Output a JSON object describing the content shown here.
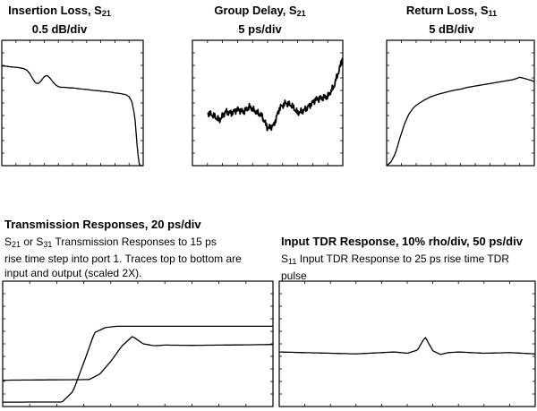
{
  "panels": {
    "insertion": {
      "title_main": "Insertion Loss, S",
      "title_sub": "21",
      "scale": "0.5 dB/div"
    },
    "group_delay": {
      "title_main": "Group Delay, S",
      "title_sub": "21",
      "scale": "5 ps/div"
    },
    "return_loss": {
      "title_main": "Return Loss, S",
      "title_sub": "11",
      "scale": "5 dB/div"
    },
    "transmission": {
      "title": "Transmission Responses, 20 ps/div",
      "desc_a": "S",
      "desc_a_sub": "21",
      "desc_b": " or S",
      "desc_b_sub": "31",
      "desc_line1": " Transmission Responses to 15 ps",
      "desc_line2": "rise time step into port 1. Traces top to bottom are",
      "desc_line3": "input and output (scaled 2X)."
    },
    "tdr": {
      "title": "Input TDR Response, 10% rho/div, 50 ps/div",
      "desc_a": "S",
      "desc_a_sub": "11",
      "desc_line1": " Input TDR Response to 25 ps rise time TDR",
      "desc_line2": "pulse"
    }
  },
  "chart_data": [
    {
      "type": "line",
      "name": "insertion-loss",
      "y_unit": "0.5 dB/div",
      "x": [
        0,
        0.2,
        0.4,
        0.6,
        0.8,
        1.0,
        1.2,
        1.4,
        1.6,
        1.8,
        2.0,
        2.2,
        2.4,
        2.6,
        2.8,
        3.0,
        3.2,
        3.4,
        3.6,
        3.8,
        4.0,
        4.2,
        4.4,
        4.6,
        4.8,
        5.0,
        5.2,
        5.4,
        5.6,
        5.8,
        6.0,
        6.2,
        6.4,
        6.6,
        6.8,
        7.0,
        7.2,
        7.4,
        7.6,
        7.8,
        8.0,
        8.2,
        8.4,
        8.6,
        8.8,
        9.0,
        9.2,
        9.4,
        9.5,
        9.6,
        9.7,
        9.8,
        9.9,
        10.0
      ],
      "y": [
        7.95,
        7.95,
        7.92,
        7.88,
        7.86,
        7.84,
        7.82,
        7.78,
        7.72,
        7.6,
        7.3,
        6.9,
        6.6,
        6.55,
        6.8,
        7.1,
        7.2,
        7.0,
        6.7,
        6.45,
        6.3,
        6.25,
        6.25,
        6.23,
        6.2,
        6.2,
        6.18,
        6.15,
        6.12,
        6.1,
        6.08,
        6.05,
        6.02,
        6.0,
        5.98,
        5.95,
        5.92,
        5.9,
        5.88,
        5.85,
        5.8,
        5.78,
        5.75,
        5.7,
        5.65,
        5.5,
        5.1,
        4.0,
        2.6,
        1.2,
        0.2,
        0,
        0,
        0
      ]
    },
    {
      "type": "line",
      "name": "group-delay",
      "y_unit": "5 ps/div",
      "x": [
        1.0,
        1.4,
        1.8,
        2.2,
        2.6,
        3.0,
        3.4,
        3.8,
        4.2,
        4.6,
        5.0,
        5.4,
        5.8,
        6.2,
        6.6,
        7.0,
        7.4,
        7.8,
        8.2,
        8.6,
        9.0,
        9.4,
        9.8,
        10.0
      ],
      "y": [
        4.2,
        4.0,
        3.6,
        4.3,
        4.2,
        4.5,
        4.3,
        4.7,
        4.3,
        4.0,
        3.0,
        3.2,
        4.6,
        5.0,
        4.8,
        4.2,
        4.4,
        4.8,
        5.3,
        5.4,
        5.5,
        6.3,
        7.8,
        8.7
      ]
    },
    {
      "type": "line",
      "name": "return-loss",
      "y_unit": "5 dB/div",
      "x": [
        0,
        0.3,
        0.6,
        0.9,
        1.2,
        1.5,
        1.8,
        2.1,
        2.5,
        3.0,
        3.5,
        4.0,
        4.5,
        5.0,
        5.5,
        6.0,
        6.5,
        7.0,
        7.5,
        8.0,
        8.5,
        8.8,
        9.0,
        9.2,
        9.5,
        9.8,
        10.0
      ],
      "y": [
        0,
        0.3,
        1.0,
        2.2,
        3.3,
        4.1,
        4.6,
        4.9,
        5.2,
        5.5,
        5.7,
        5.85,
        6.0,
        6.1,
        6.25,
        6.35,
        6.45,
        6.55,
        6.65,
        6.75,
        6.85,
        6.95,
        7.05,
        7.0,
        6.9,
        6.8,
        6.7
      ]
    },
    {
      "type": "line",
      "name": "transmission-responses",
      "x_unit": "20 ps/div",
      "series": [
        {
          "x": [
            0,
            2.2,
            2.6,
            3.0,
            3.4,
            3.8,
            4.2,
            4.6,
            10.0
          ],
          "y": [
            0.35,
            0.36,
            1.2,
            3.5,
            5.9,
            6.3,
            6.4,
            6.4,
            6.4
          ]
        },
        {
          "x": [
            0,
            3.2,
            3.6,
            4.0,
            4.4,
            4.8,
            5.2,
            5.6,
            6.0,
            7.0,
            8.0,
            9.0,
            10.0
          ],
          "y": [
            2.1,
            2.15,
            2.6,
            3.6,
            4.8,
            5.6,
            5.0,
            4.85,
            4.9,
            4.88,
            4.9,
            4.92,
            4.95
          ]
        }
      ]
    },
    {
      "type": "line",
      "name": "input-tdr",
      "y_unit": "10% rho/div",
      "x_unit": "50 ps/div",
      "x": [
        0,
        1.0,
        2.0,
        3.0,
        4.0,
        4.5,
        5.0,
        5.4,
        5.7,
        6.0,
        6.3,
        6.6,
        7.0,
        8.0,
        9.0,
        10.0
      ],
      "y": [
        4.35,
        4.3,
        4.25,
        4.2,
        4.3,
        4.35,
        4.25,
        4.5,
        5.55,
        4.45,
        4.15,
        4.3,
        4.35,
        4.25,
        4.3,
        4.2
      ]
    }
  ]
}
